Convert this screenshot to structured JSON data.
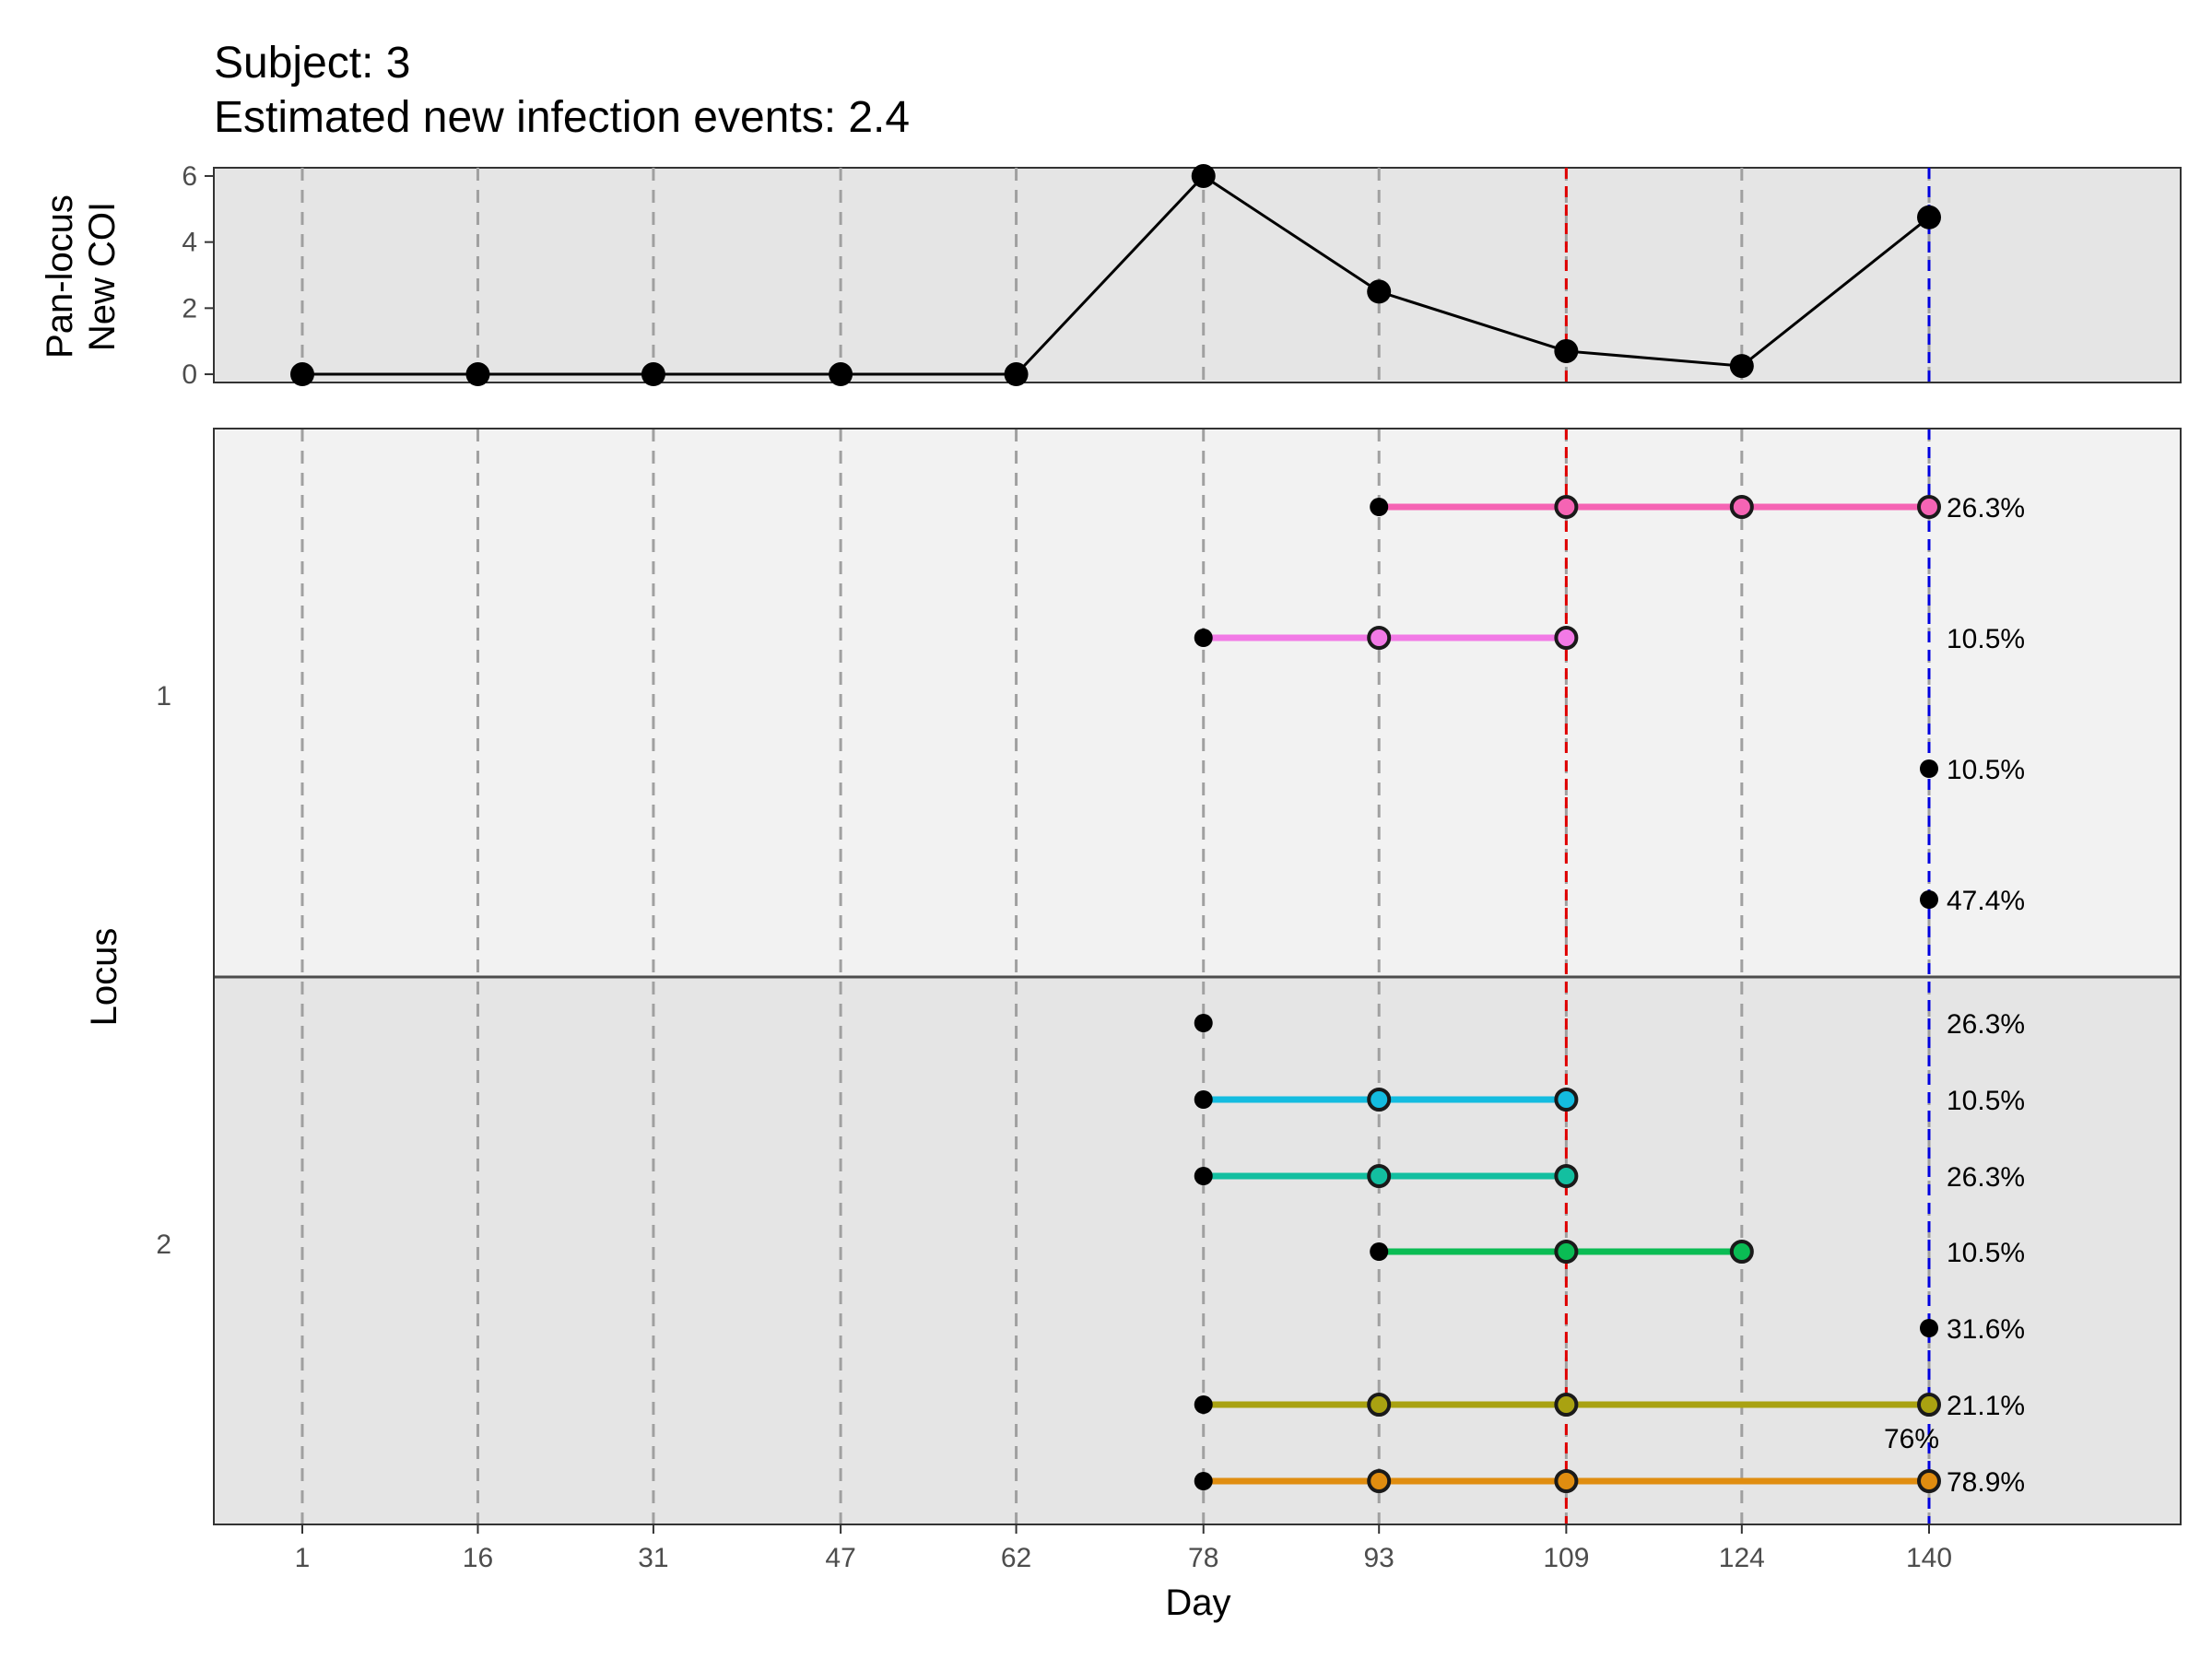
{
  "chart_data": {
    "type": "line",
    "title_line1": "Subject: 3",
    "title_line2": "Estimated new infection events: 2.4",
    "xlabel": "Day",
    "x_ticks": [
      1,
      16,
      31,
      47,
      62,
      78,
      93,
      109,
      124,
      140
    ],
    "top_panel": {
      "ylabel_line1": "Pan-locus",
      "ylabel_line2": "New COI",
      "y_ticks": [
        0,
        2,
        4,
        6
      ],
      "ylim": [
        -0.25,
        6.25
      ],
      "points": [
        {
          "x": 1,
          "y": 0
        },
        {
          "x": 16,
          "y": 0
        },
        {
          "x": 31,
          "y": 0
        },
        {
          "x": 47,
          "y": 0
        },
        {
          "x": 62,
          "y": 0
        },
        {
          "x": 78,
          "y": 6
        },
        {
          "x": 93,
          "y": 2.5
        },
        {
          "x": 109,
          "y": 0.7
        },
        {
          "x": 124,
          "y": 0.25
        },
        {
          "x": 140,
          "y": 4.75
        }
      ]
    },
    "bottom_panel": {
      "ylabel": "Locus",
      "loci": [
        {
          "label": "1",
          "rows": [
            {
              "start": 93,
              "points": [
                109,
                124,
                140
              ],
              "color": "#F564B4",
              "percent": "26.3%"
            },
            {
              "start": 78,
              "points": [
                93,
                109
              ],
              "color": "#F27AE6",
              "percent": "10.5%"
            },
            {
              "start": 140,
              "points": [],
              "color": "#000000",
              "percent": "10.5%"
            },
            {
              "start": 140,
              "points": [],
              "color": "#000000",
              "percent": "47.4%"
            }
          ]
        },
        {
          "label": "2",
          "rows": [
            {
              "start": 78,
              "points": [],
              "color": "#000000",
              "percent": "26.3%"
            },
            {
              "start": 78,
              "points": [
                93,
                109
              ],
              "color": "#14BCE0",
              "percent": "10.5%"
            },
            {
              "start": 78,
              "points": [
                93,
                109
              ],
              "color": "#13BFA0",
              "percent": "26.3%"
            },
            {
              "start": 93,
              "points": [
                109,
                124
              ],
              "color": "#0ABC54",
              "percent": "10.5%"
            },
            {
              "start": 140,
              "points": [],
              "color": "#000000",
              "percent": "31.6%"
            },
            {
              "start": 78,
              "points": [
                93,
                109,
                140
              ],
              "color": "#A9A211",
              "percent": "21.1%"
            },
            {
              "start": 78,
              "points": [
                93,
                109,
                140
              ],
              "color": "#E08D10",
              "percent": "78.9%"
            }
          ]
        }
      ],
      "extra_label": "76%"
    },
    "ref_lines": [
      {
        "x": 109,
        "color": "#E00000"
      },
      {
        "x": 140,
        "color": "#0000E0"
      }
    ],
    "grid": true,
    "legend": "none"
  }
}
